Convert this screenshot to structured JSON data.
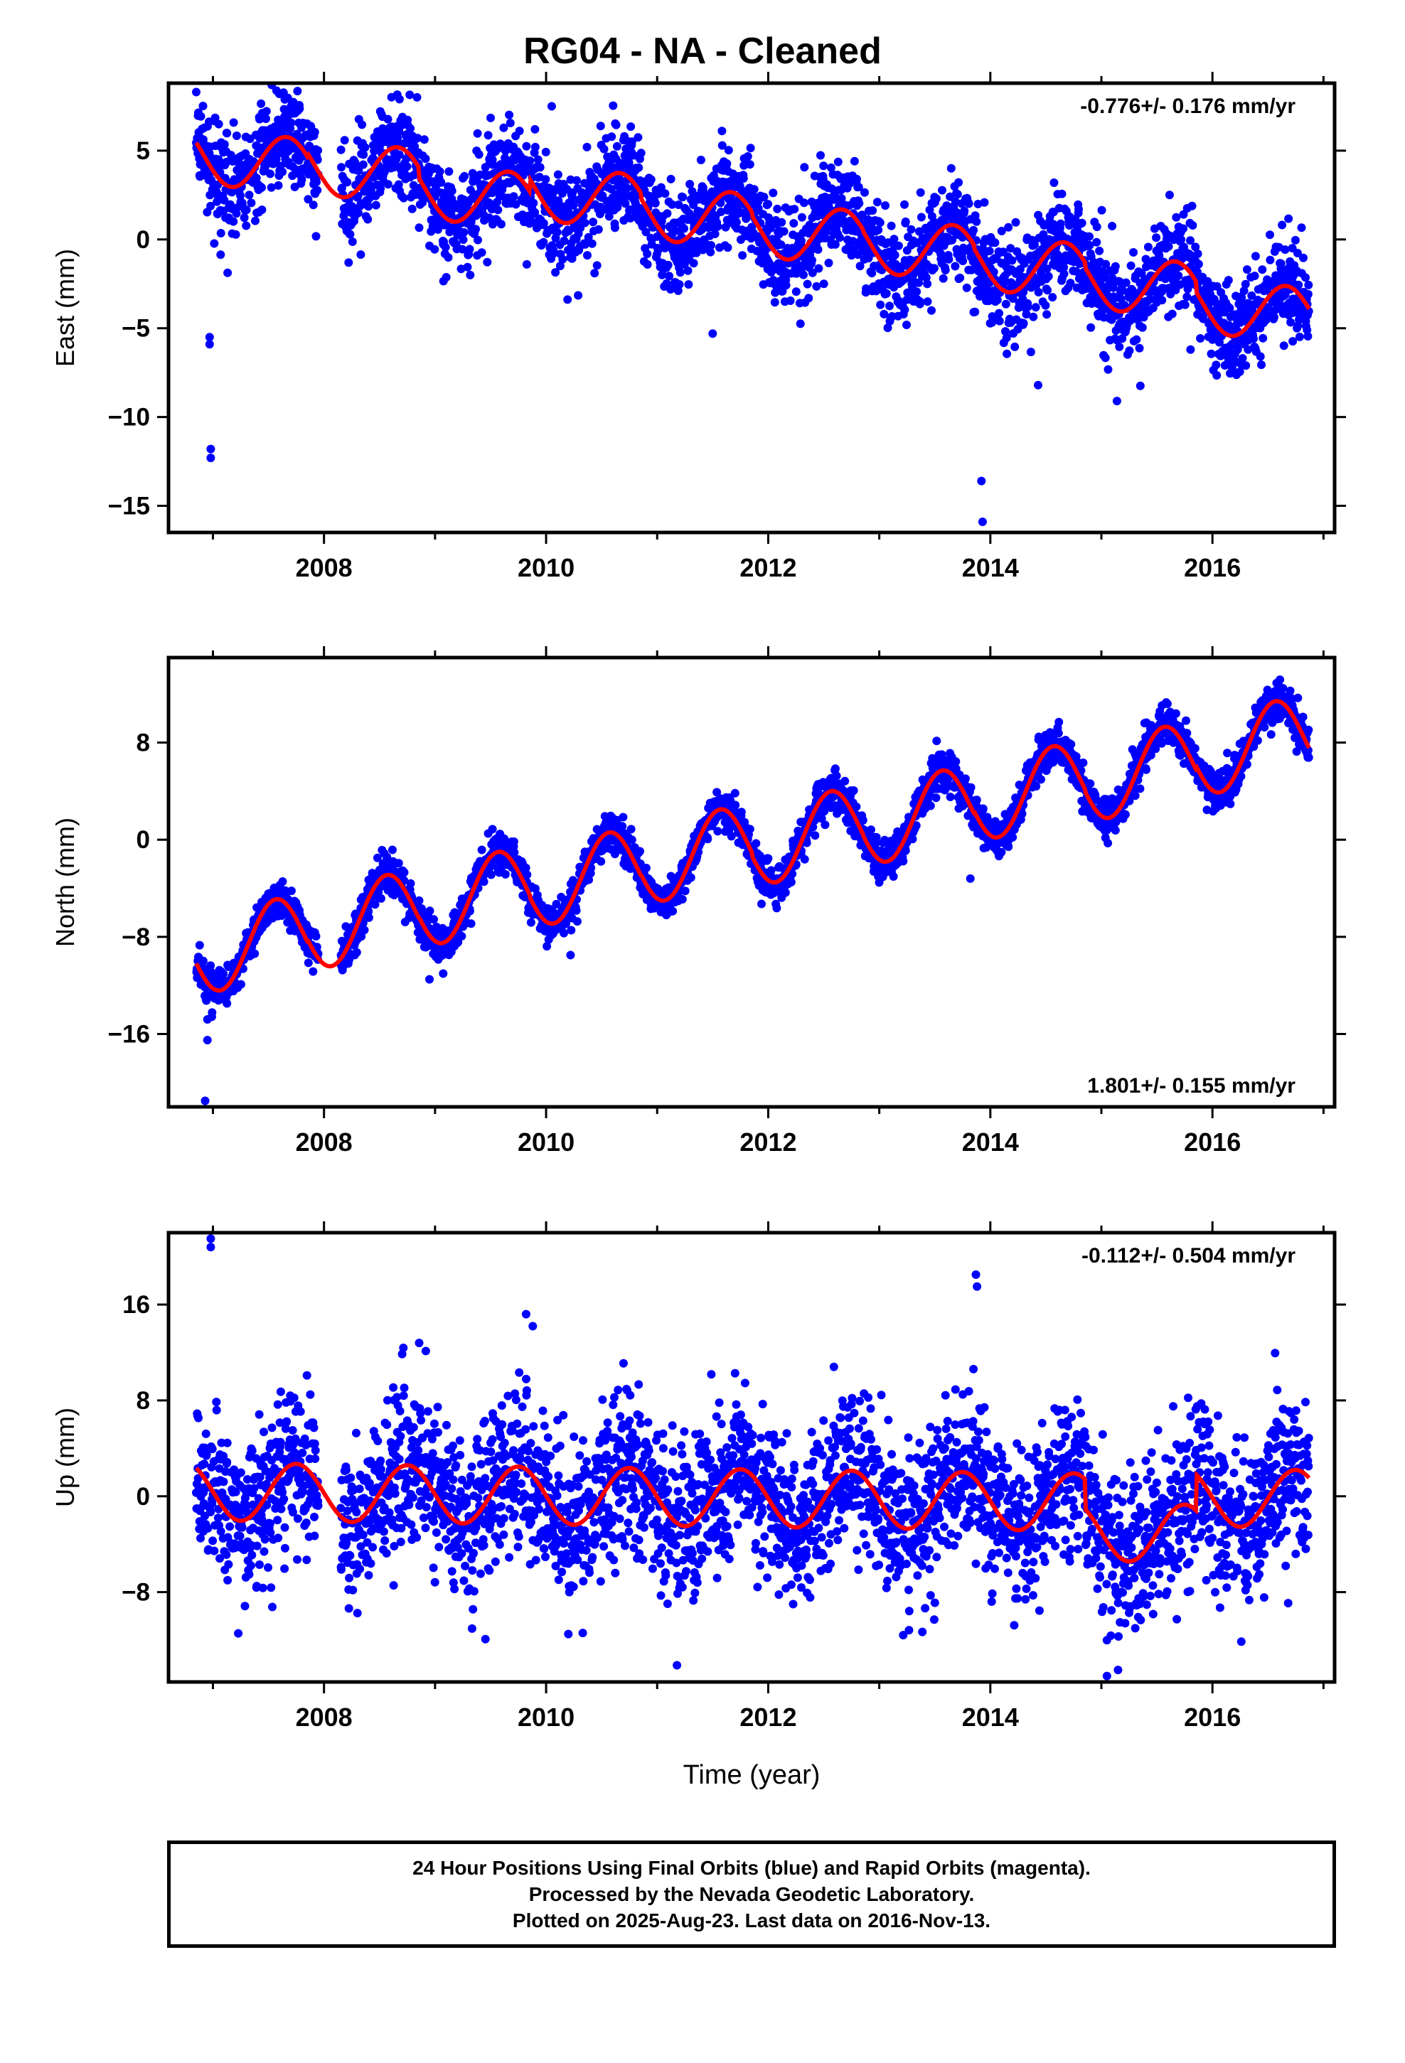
{
  "title": "RG04  - NA - Cleaned",
  "colors": {
    "points": "#0000ff",
    "model": "#ff0000",
    "axes": "#000000"
  },
  "footer": {
    "line1": "24 Hour Positions Using Final Orbits (blue) and Rapid Orbits (magenta).",
    "line2": "Processed by the Nevada Geodetic Laboratory.",
    "line3": "Plotted on 2025-Aug-23. Last data on 2016-Nov-13."
  },
  "chart_data": [
    {
      "type": "scatter",
      "ylabel": "East (mm)",
      "xlabel": "",
      "rate_label": "-0.776+/- 0.176 mm/yr",
      "rate_position": "top-right",
      "xlim": [
        2006.6,
        2017.1
      ],
      "ylim": [
        -16.5,
        8.8
      ],
      "xticks": [
        2008,
        2010,
        2012,
        2014,
        2016
      ],
      "yticks": [
        5,
        0,
        -5,
        -10,
        -15
      ],
      "x_start": 2006.85,
      "x_end": 2016.87,
      "gap": [
        2007.95,
        2008.15
      ],
      "trend_intercept_at_start": 3.4,
      "rate_mm_per_yr": -0.776,
      "seasonal_amplitude": 1.6,
      "seasonal_peak_month": 8.5,
      "scatter_sigma": 1.4,
      "annual_offsets": [
        1.4,
        1.6,
        1.0,
        1.7,
        1.4,
        1.2,
        1.1,
        0.9,
        0.6,
        0.0
      ],
      "outliers": [
        {
          "x": 2006.97,
          "y": -5.5
        },
        {
          "x": 2006.97,
          "y": -5.9
        },
        {
          "x": 2006.98,
          "y": -11.8
        },
        {
          "x": 2006.98,
          "y": -12.3
        },
        {
          "x": 2006.85,
          "y": 8.3
        },
        {
          "x": 2013.92,
          "y": -13.6
        },
        {
          "x": 2013.93,
          "y": -15.9
        },
        {
          "x": 2014.43,
          "y": -8.2
        },
        {
          "x": 2015.14,
          "y": -9.1
        },
        {
          "x": 2011.5,
          "y": -5.3
        },
        {
          "x": 2008.68,
          "y": 7.9
        },
        {
          "x": 2010.05,
          "y": 7.5
        }
      ]
    },
    {
      "type": "scatter",
      "ylabel": "North (mm)",
      "xlabel": "",
      "rate_label": "1.801+/- 0.155 mm/yr",
      "rate_position": "bottom-right",
      "xlim": [
        2006.6,
        2017.1
      ],
      "ylim": [
        -22,
        15
      ],
      "xticks": [
        2008,
        2010,
        2012,
        2014,
        2016
      ],
      "yticks": [
        8,
        0,
        -8,
        -16
      ],
      "x_start": 2006.85,
      "x_end": 2016.87,
      "gap": [
        2007.95,
        2008.15
      ],
      "trend_intercept_at_start": -9.5,
      "rate_mm_per_yr": 1.801,
      "seasonal_amplitude": 3.3,
      "seasonal_peak_month": 7.3,
      "scatter_sigma": 0.8,
      "annual_offsets": [
        0,
        0.2,
        0.3,
        0.1,
        0.2,
        -0.1,
        -0.2,
        0.0,
        -0.2,
        0.1
      ],
      "outliers": [
        {
          "x": 2006.95,
          "y": -16.5
        },
        {
          "x": 2006.95,
          "y": -14.8
        },
        {
          "x": 2006.93,
          "y": -21.5
        },
        {
          "x": 2010.22,
          "y": -9.5
        },
        {
          "x": 2008.95,
          "y": -11.5
        },
        {
          "x": 2013.82,
          "y": -3.2
        }
      ]
    },
    {
      "type": "scatter",
      "ylabel": "Up (mm)",
      "xlabel": "Time (year)",
      "rate_label": "-0.112+/- 0.504 mm/yr",
      "rate_position": "top-right",
      "xlim": [
        2006.6,
        2017.1
      ],
      "ylim": [
        -15.5,
        22
      ],
      "xticks": [
        2008,
        2010,
        2012,
        2014,
        2016
      ],
      "yticks": [
        16,
        8,
        0,
        -8
      ],
      "x_start": 2006.85,
      "x_end": 2016.87,
      "gap": [
        2007.95,
        2008.15
      ],
      "trend_intercept_at_start": 0.4,
      "rate_mm_per_yr": -0.112,
      "seasonal_amplitude": 2.4,
      "seasonal_peak_month": 9.5,
      "scatter_sigma": 3.3,
      "annual_offsets": [
        0,
        0,
        0,
        0,
        0,
        0,
        0,
        0,
        -2.5,
        0.5
      ],
      "outliers": [
        {
          "x": 2006.98,
          "y": 21.5
        },
        {
          "x": 2006.98,
          "y": 20.8
        },
        {
          "x": 2013.87,
          "y": 18.5
        },
        {
          "x": 2013.88,
          "y": 17.5
        },
        {
          "x": 2009.82,
          "y": 15.2
        },
        {
          "x": 2009.88,
          "y": 14.2
        },
        {
          "x": 2015.05,
          "y": -15.0
        },
        {
          "x": 2015.15,
          "y": -14.5
        },
        {
          "x": 2010.2,
          "y": -11.5
        }
      ]
    }
  ]
}
